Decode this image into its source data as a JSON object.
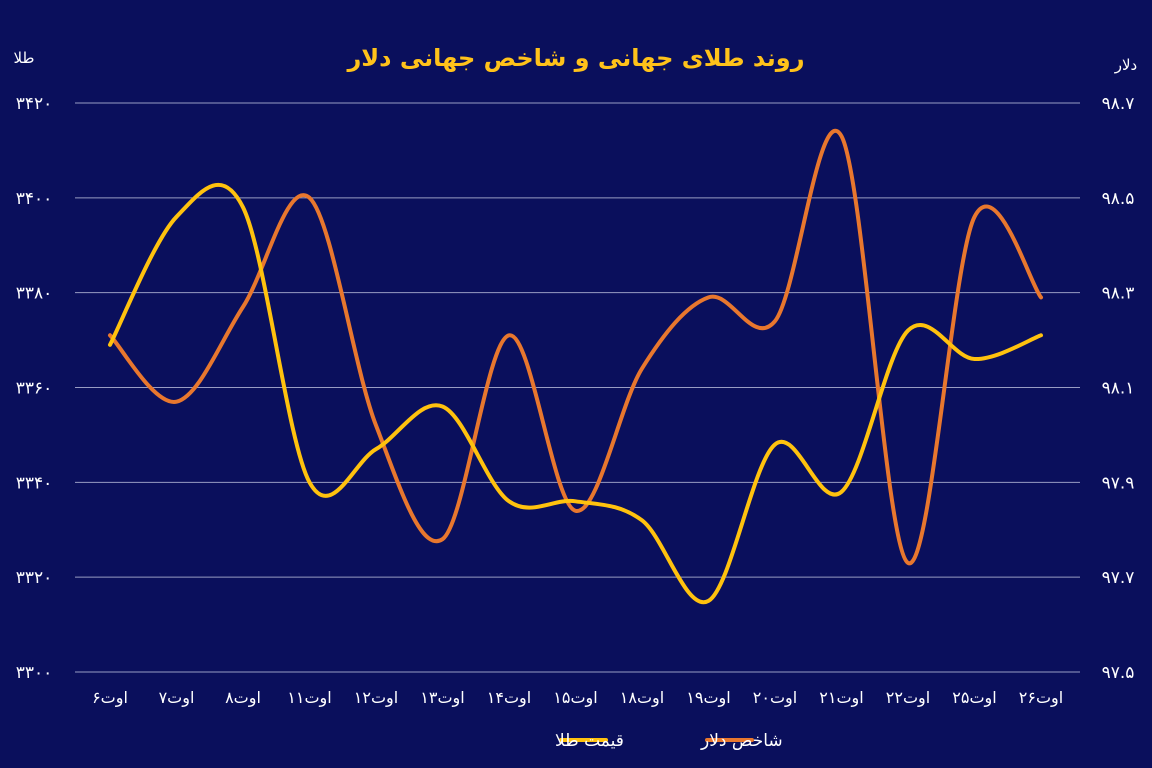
{
  "chart_data": {
    "type": "line",
    "title": "روند طلای جهانی و شاخص جهانی دلار",
    "y_left_label": "طلا",
    "y_right_label": "دلار",
    "categories": [
      "۶اوت",
      "۷اوت",
      "۸اوت",
      "۱۱اوت",
      "۱۲اوت",
      "۱۳اوت",
      "۱۴اوت",
      "۱۵اوت",
      "۱۸اوت",
      "۱۹اوت",
      "۲۰اوت",
      "۲۱اوت",
      "۲۲اوت",
      "۲۵اوت",
      "۲۶اوت"
    ],
    "y_left": {
      "min": 3300,
      "max": 3420,
      "ticks": [
        3300,
        3320,
        3340,
        3360,
        3380,
        3400,
        3420
      ],
      "tick_labels": [
        "۳۳۰۰",
        "۳۳۲۰",
        "۳۳۴۰",
        "۳۳۶۰",
        "۳۳۸۰",
        "۳۴۰۰",
        "۳۴۲۰"
      ]
    },
    "y_right": {
      "min": 97.5,
      "max": 98.7,
      "ticks": [
        97.5,
        97.7,
        97.9,
        98.1,
        98.3,
        98.5,
        98.7
      ],
      "tick_labels": [
        "۹۷.۵",
        "۹۷.۷",
        "۹۷.۹",
        "۹۸.۱",
        "۹۸.۳",
        "۹۸.۵",
        "۹۸.۷"
      ]
    },
    "grid": true,
    "legend_position": "bottom-center",
    "series": [
      {
        "name": "قیمت طلا",
        "axis": "left",
        "color": "#ffc20e",
        "values": [
          3369,
          3396,
          3398,
          3340,
          3347,
          3356,
          3336,
          3336,
          3332,
          3315,
          3348,
          3338,
          3372,
          3366,
          3371
        ]
      },
      {
        "name": "شاخص دلار",
        "axis": "right",
        "color": "#e8772e",
        "values": [
          98.21,
          98.07,
          98.27,
          98.5,
          98.02,
          97.78,
          98.21,
          97.84,
          98.14,
          98.29,
          98.24,
          98.63,
          97.73,
          98.46,
          98.29
        ]
      }
    ]
  }
}
